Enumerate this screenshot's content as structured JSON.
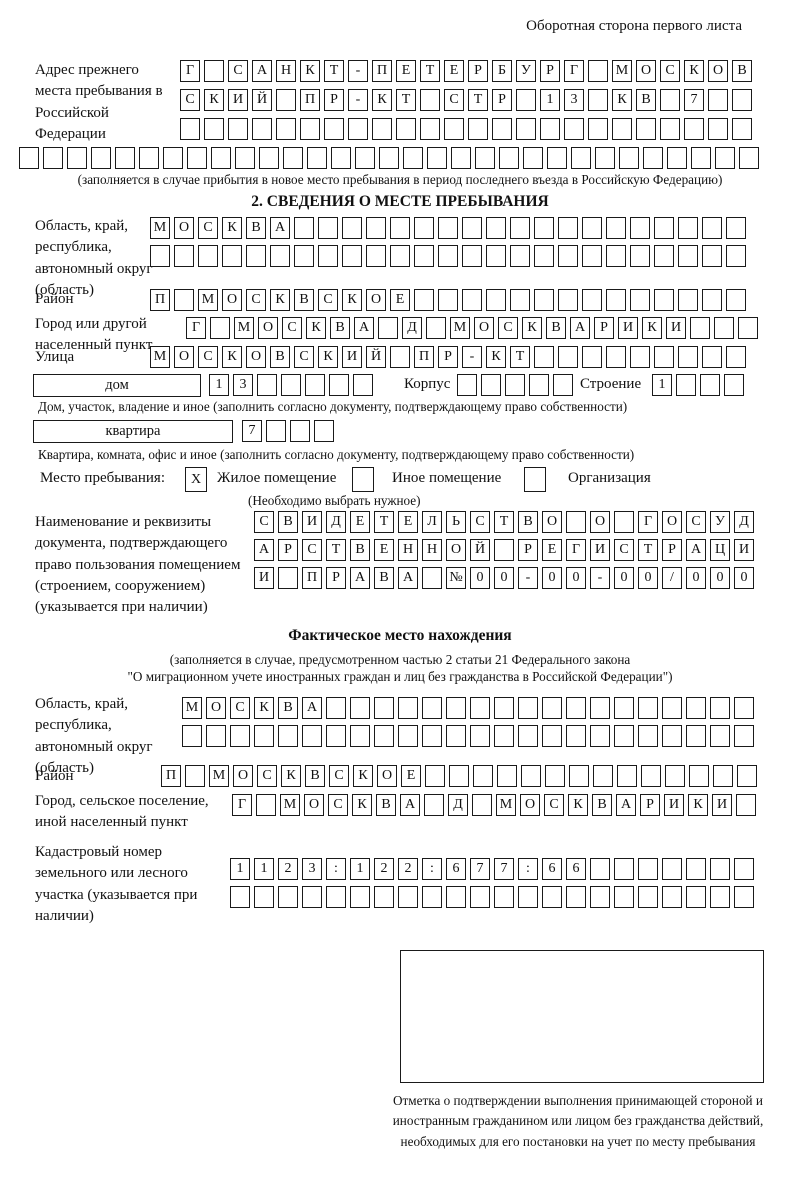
{
  "page": {
    "side_note": "Оборотная сторона первого листа"
  },
  "prev_address": {
    "label": "Адрес прежнего места пребывания в Российской Федерации",
    "rows": [
      {
        "n": 24,
        "text": "Г САНКТ-ПЕТЕРБУРГ МОСКОВ"
      },
      {
        "n": 24,
        "text": "СКИЙ ПР-КТ СТР 13 КВ 7"
      },
      {
        "n": 24,
        "text": ""
      },
      {
        "n": 31,
        "text": ""
      }
    ],
    "note": "(заполняется в случае прибытия в новое место пребывания в период последнего въезда в Российскую Федерацию)"
  },
  "section2": {
    "title": "2. СВЕДЕНИЯ О МЕСТЕ ПРЕБЫВАНИЯ",
    "region": {
      "label": "Область, край, республика, автономный округ (область)",
      "rows": [
        {
          "n": 25,
          "text": "МОСКВА"
        },
        {
          "n": 25,
          "text": ""
        }
      ]
    },
    "district": {
      "label": "Район",
      "rows": [
        {
          "n": 25,
          "text": "П МОСКВСКОЕ"
        }
      ]
    },
    "city": {
      "label": "Город или другой населенный пункт",
      "rows": [
        {
          "n": 24,
          "text": "Г МОСКВА Д МОСКВАРИКИ"
        }
      ]
    },
    "street": {
      "label": "Улица",
      "rows": [
        {
          "n": 25,
          "text": "МОСКОВСКИЙ ПР-КТ"
        }
      ]
    },
    "house": {
      "box_label": "дом",
      "cells": {
        "n": 7,
        "text": "13"
      },
      "korpus_label": "Корпус",
      "korpus_cells": {
        "n": 5,
        "text": ""
      },
      "stroenie_label": "Строение",
      "stroenie_cells": {
        "n": 4,
        "text": "1"
      },
      "note": "Дом, участок, владение и иное (заполнить согласно документу, подтверждающему право собственности)"
    },
    "apartment": {
      "box_label": "квартира",
      "cells": {
        "n": 4,
        "text": "7"
      },
      "note": "Квартира, комната, офис и иное (заполнить согласно документу, подтверждающему право собственности)"
    },
    "stay_type": {
      "label": "Место пребывания:",
      "options": [
        {
          "label": "Жилое помещение",
          "mark": "X"
        },
        {
          "label": "Иное помещение",
          "mark": ""
        },
        {
          "label": "Организация",
          "mark": ""
        }
      ],
      "note": "(Необходимо выбрать нужное)"
    },
    "doc_name": {
      "label": "Наименование и реквизиты документа, подтверждающего право пользования помещением (строением, сооружением) (указывается при наличии)",
      "rows": [
        {
          "n": 21,
          "text": "СВИДЕТЕЛЬСТВО О ГОСУД"
        },
        {
          "n": 21,
          "text": "АРСТВЕННОЙ РЕГИСТРАЦИ"
        },
        {
          "n": 21,
          "text": "И ПРАВА №00-00-00/000"
        }
      ]
    }
  },
  "fact_location": {
    "title": "Фактическое место нахождения",
    "note_line1": "(заполняется в случае, предусмотренном частью 2 статьи 21 Федерального закона",
    "note_line2": "\"О миграционном учете иностранных граждан и лиц без гражданства в Российской Федерации\")",
    "region": {
      "label": "Область, край, республика, автономный округ (область)",
      "rows": [
        {
          "n": 24,
          "text": "МОСКВА"
        },
        {
          "n": 24,
          "text": ""
        }
      ]
    },
    "district": {
      "label": "Район",
      "rows": [
        {
          "n": 25,
          "text": "П МОСКВСКОЕ"
        }
      ]
    },
    "city": {
      "label": "Город, сельское поселение, иной населенный пункт",
      "rows": [
        {
          "n": 22,
          "text": "Г МОСКВА Д МОСКВАРИКИ"
        }
      ]
    },
    "cadastral": {
      "label": "Кадастровый номер земельного или лесного участка (указывается при наличии)",
      "rows": [
        {
          "n": 22,
          "text": "1123:122:677:66"
        },
        {
          "n": 22,
          "text": ""
        }
      ]
    }
  },
  "stamp": {
    "caption": "Отметка о подтверждении выполнения принимающей стороной и иностранным гражданином или лицом без гражданства действий, необходимых для его постановки на учет по месту пребывания"
  }
}
